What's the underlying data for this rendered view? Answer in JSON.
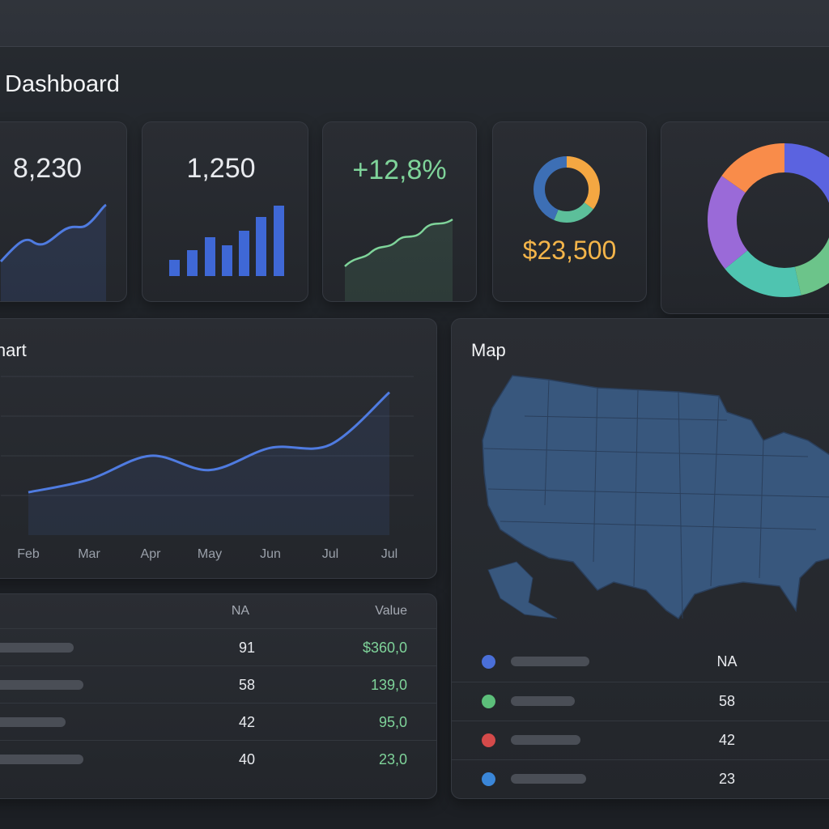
{
  "header": {
    "title": "Dashboard"
  },
  "cards": [
    {
      "value": "8,230"
    },
    {
      "value": "1,250"
    },
    {
      "value": "+12,8%"
    },
    {
      "value": "$23,500"
    }
  ],
  "chart_data": {
    "type": "line",
    "title": "Chart",
    "categories": [
      "Feb",
      "Mar",
      "Apr",
      "May",
      "Jun",
      "Jul",
      "Jul"
    ],
    "values": [
      27,
      35,
      50,
      41,
      55,
      57,
      90
    ],
    "ylim": [
      0,
      100
    ],
    "color": "#4f7be0"
  },
  "table": {
    "header": [
      "NA",
      "Value"
    ],
    "rows": [
      [
        91,
        "$360,0"
      ],
      [
        58,
        "139,0"
      ],
      [
        42,
        "95,0"
      ],
      [
        40,
        "23,0"
      ]
    ]
  },
  "map": {
    "title": "Map",
    "rows": [
      {
        "color": "#4a6fd8",
        "value": "NA"
      },
      {
        "color": "#5cbf7a",
        "value": 58
      },
      {
        "color": "#d44a4a",
        "value": 42
      },
      {
        "color": "#3a86d8",
        "value": 23
      }
    ]
  }
}
